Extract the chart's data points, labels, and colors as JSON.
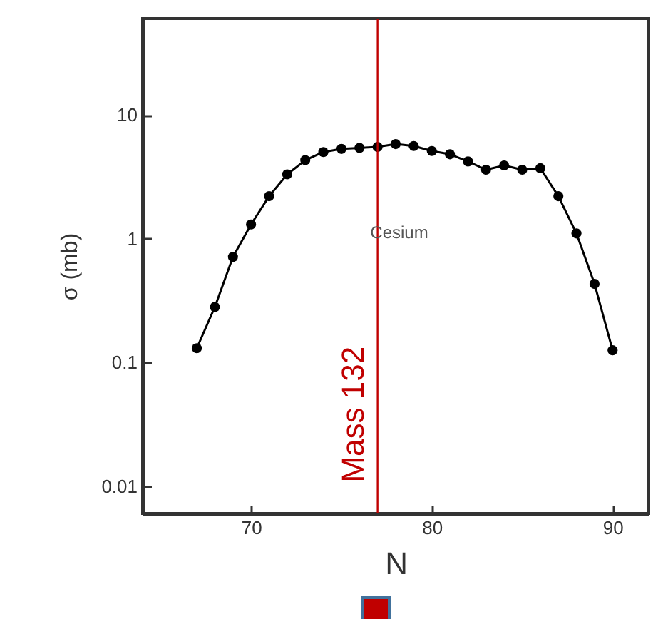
{
  "chart_data": {
    "type": "line",
    "xlabel": "N",
    "ylabel": "σ (mb)",
    "annotations": [
      "Cesium"
    ],
    "x": [
      67,
      68,
      69,
      70,
      71,
      72,
      73,
      74,
      75,
      76,
      77,
      78,
      79,
      80,
      81,
      82,
      83,
      84,
      85,
      86,
      87,
      88,
      89,
      90
    ],
    "series": [
      {
        "color": "#000000",
        "values": [
          0.13,
          0.28,
          0.71,
          1.3,
          2.2,
          3.3,
          4.3,
          5.0,
          5.3,
          5.4,
          5.5,
          5.8,
          5.6,
          5.1,
          4.8,
          4.2,
          3.6,
          3.9,
          3.6,
          3.7,
          2.2,
          1.1,
          0.43,
          0.125
        ]
      }
    ],
    "xlim": [
      64,
      92
    ],
    "xticks": [
      70,
      80,
      90
    ],
    "ylim": [
      0.006,
      60
    ],
    "yticks": [
      0.01,
      0.1,
      1,
      10
    ],
    "log": "y",
    "marker": "circle",
    "line_style": "solid",
    "grid": false,
    "ref_lines": [
      {
        "axis": "x",
        "value": 77,
        "label": "Mass 132",
        "color": "#c00000"
      }
    ]
  }
}
